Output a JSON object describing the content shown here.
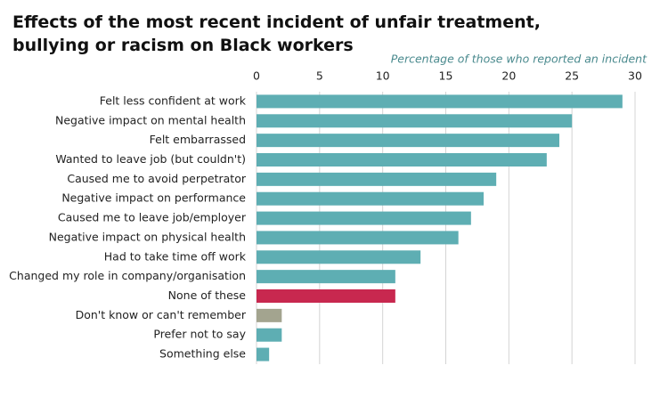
{
  "chart_data": {
    "type": "bar",
    "orientation": "horizontal",
    "title": "Effects of the most recent incident of unfair treatment, bullying or racism on Black workers",
    "x_label": "Percentage of those who reported an incident",
    "categories": [
      "Felt less confident at work",
      "Negative impact on mental health",
      "Felt embarrassed",
      "Wanted to leave job (but couldn't)",
      "Caused me to avoid perpetrator",
      "Negative impact on performance",
      "Caused me to leave job/employer",
      "Negative impact on physical health",
      "Had to take time off work",
      "Changed my role in company/organisation",
      "None of these",
      "Don't know or can't remember",
      "Prefer not to say",
      "Something else"
    ],
    "values": [
      29,
      25,
      24,
      23,
      19,
      18,
      17,
      16,
      13,
      11,
      11,
      2,
      2,
      1
    ],
    "colors": [
      "#5eaeb3",
      "#5eaeb3",
      "#5eaeb3",
      "#5eaeb3",
      "#5eaeb3",
      "#5eaeb3",
      "#5eaeb3",
      "#5eaeb3",
      "#5eaeb3",
      "#5eaeb3",
      "#c8284f",
      "#a3a48f",
      "#5eaeb3",
      "#5eaeb3"
    ],
    "xlim": [
      0,
      30
    ],
    "xticks": [
      0,
      5,
      10,
      15,
      20,
      25,
      30
    ],
    "grid": true
  }
}
